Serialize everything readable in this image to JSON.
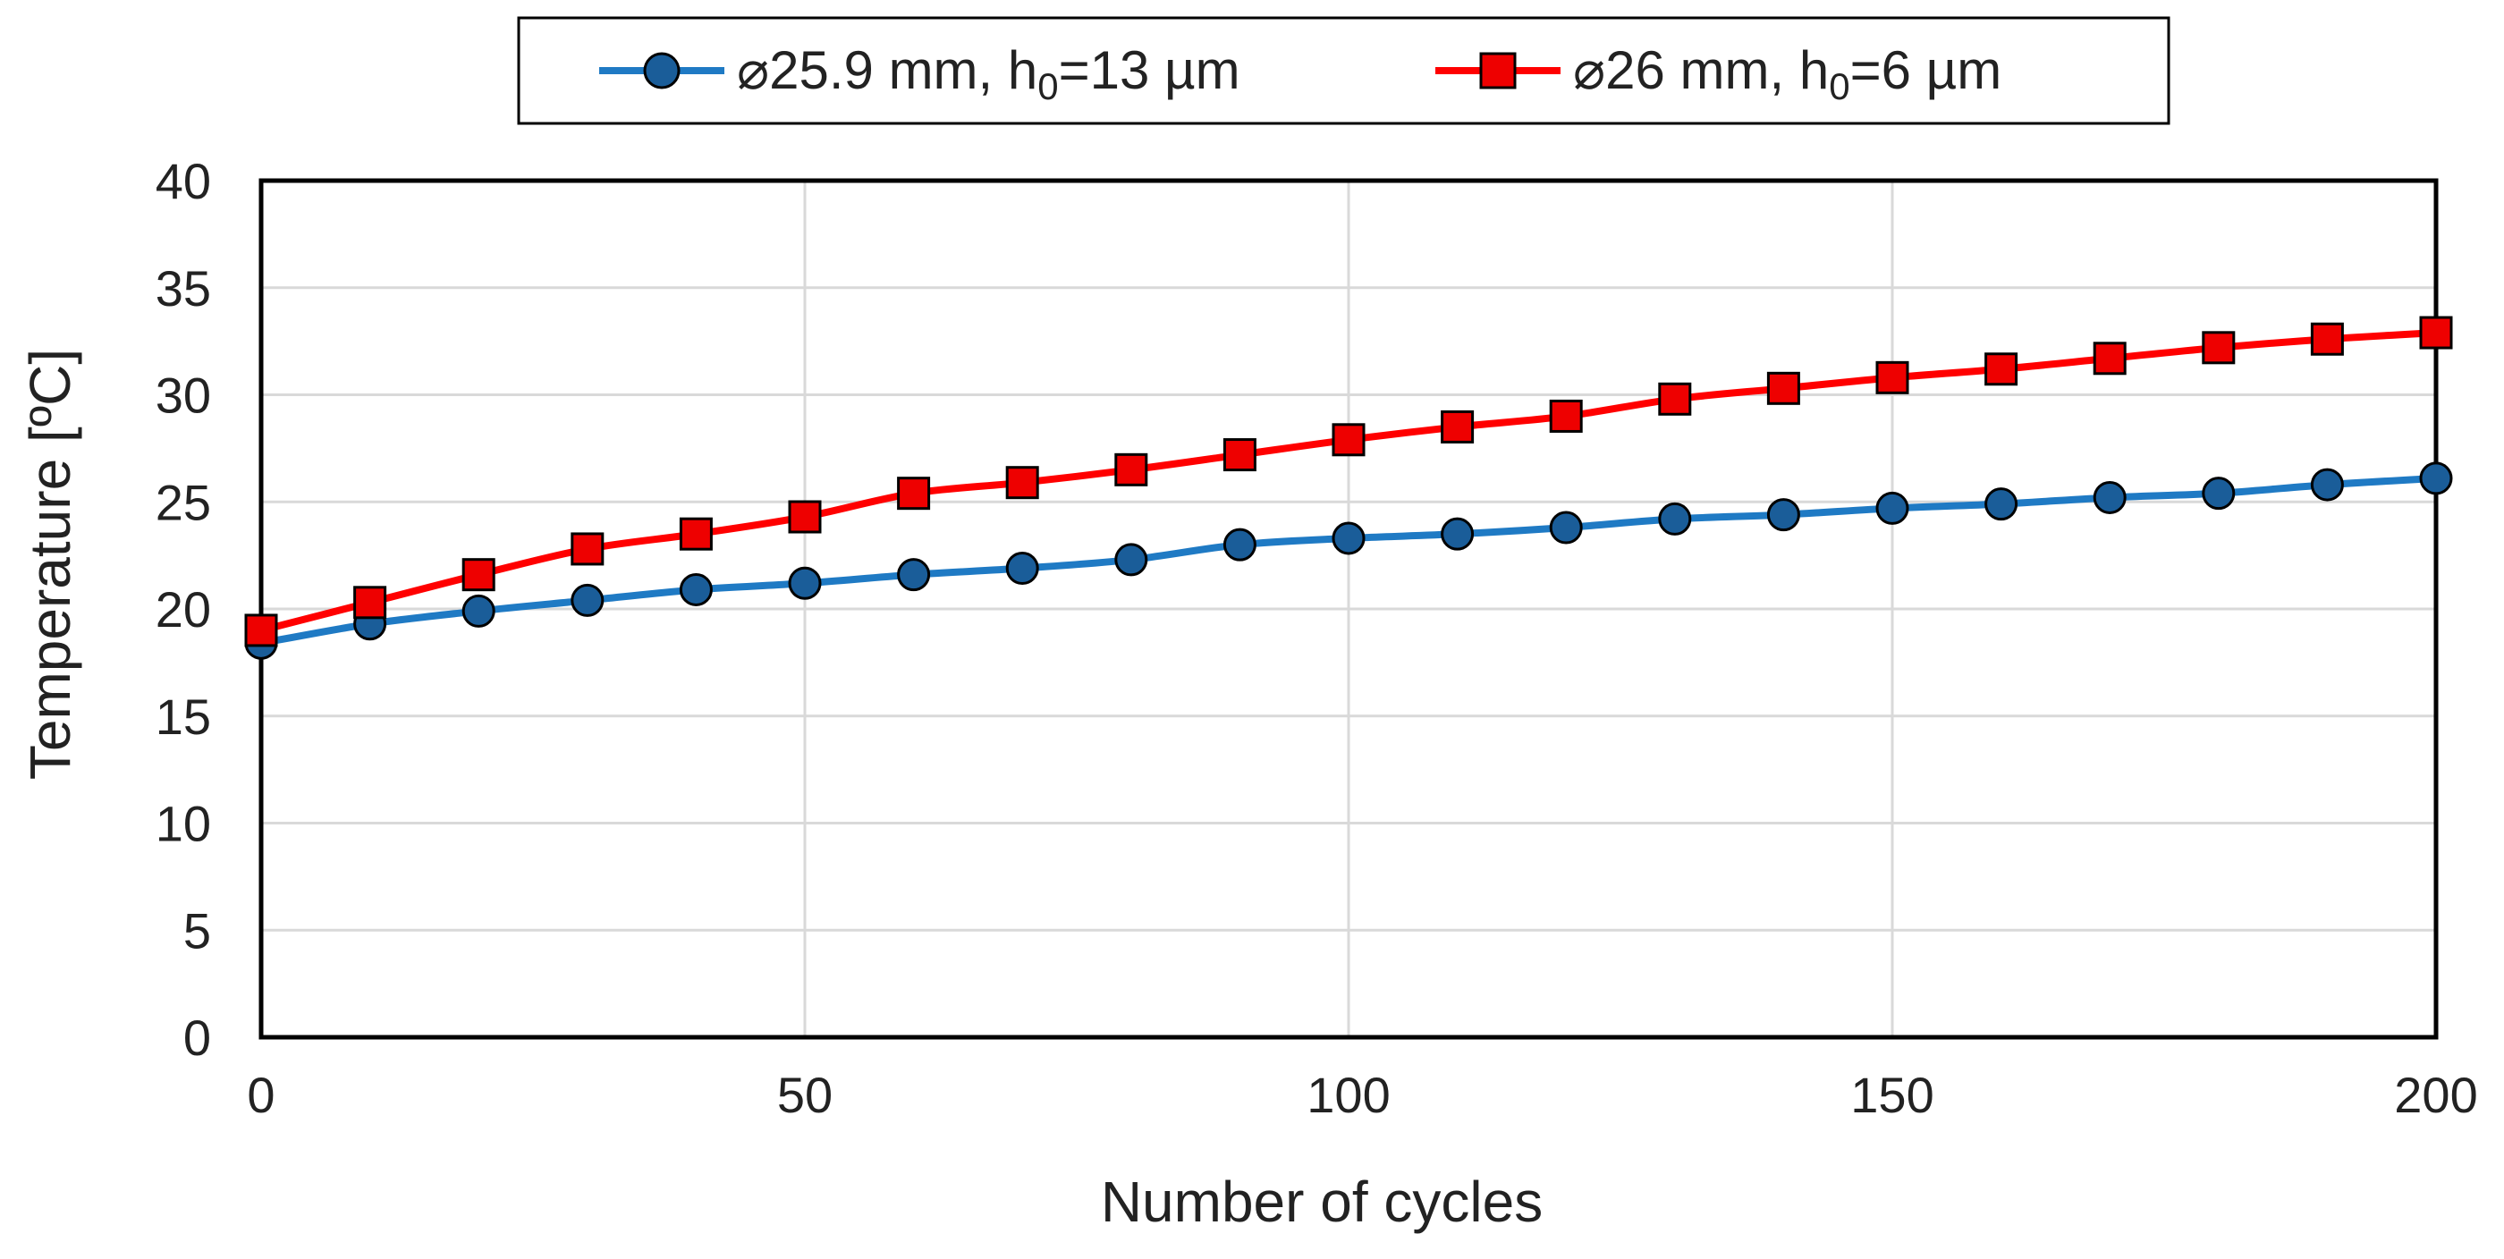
{
  "chart_data": {
    "type": "line",
    "title": "",
    "xlabel": "Number of cycles",
    "ylabel": "Temperature [ºC]",
    "xlim": [
      0,
      200
    ],
    "ylim": [
      0,
      40
    ],
    "xticks": [
      0,
      50,
      100,
      150,
      200
    ],
    "yticks": [
      0,
      5,
      10,
      15,
      20,
      25,
      30,
      35,
      40
    ],
    "grid": true,
    "legend_position": "top-center",
    "x": [
      0,
      10,
      20,
      30,
      40,
      50,
      60,
      70,
      80,
      90,
      100,
      110,
      120,
      130,
      140,
      150,
      160,
      170,
      180,
      190,
      200
    ],
    "series": [
      {
        "name": "⌀25.9 mm, h0=13 µm",
        "label_main": "⌀25.9 mm, h",
        "label_sub": "0",
        "label_rest": "=13 µm",
        "color": "#1f7ac4",
        "marker": "circle",
        "marker_fill": "#1a5d99",
        "values": [
          18.4,
          19.3,
          19.9,
          20.4,
          20.9,
          21.2,
          21.6,
          21.9,
          22.3,
          23.0,
          23.3,
          23.5,
          23.8,
          24.2,
          24.4,
          24.7,
          24.9,
          25.2,
          25.4,
          25.8,
          26.1
        ]
      },
      {
        "name": "⌀26 mm, h0=6 µm",
        "label_main": "⌀26 mm, h",
        "label_sub": "0",
        "label_rest": "=6 µm",
        "color": "#ff0000",
        "marker": "square",
        "marker_fill": "#ee0000",
        "values": [
          19.0,
          20.3,
          21.6,
          22.8,
          23.5,
          24.3,
          25.4,
          25.9,
          26.5,
          27.2,
          27.9,
          28.5,
          29.0,
          29.8,
          30.3,
          30.8,
          31.2,
          31.7,
          32.2,
          32.6,
          32.9
        ]
      }
    ]
  }
}
